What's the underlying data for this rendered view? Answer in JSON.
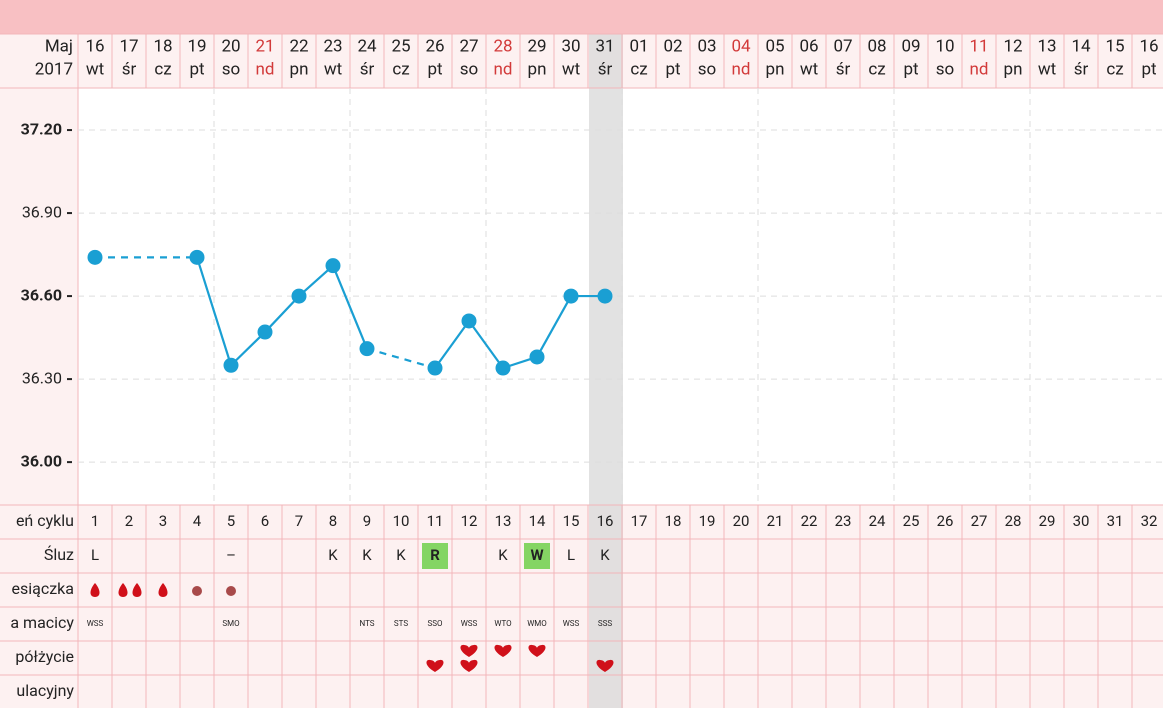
{
  "header": {
    "month": "Maj",
    "year": "2017"
  },
  "chart_data": {
    "type": "line",
    "x": [
      "16",
      "17",
      "18",
      "19",
      "20",
      "21",
      "22",
      "23",
      "24",
      "25",
      "26",
      "27",
      "28",
      "29",
      "30",
      "31",
      "01",
      "02",
      "03",
      "04",
      "05",
      "06",
      "07",
      "08",
      "09",
      "10",
      "11",
      "12",
      "13",
      "14",
      "15",
      "16"
    ],
    "weekdays": [
      "wt",
      "śr",
      "cz",
      "pt",
      "so",
      "nd",
      "pn",
      "wt",
      "śr",
      "cz",
      "pt",
      "so",
      "nd",
      "pn",
      "wt",
      "śr",
      "cz",
      "pt",
      "so",
      "nd",
      "pn",
      "wt",
      "śr",
      "cz",
      "pt",
      "so",
      "nd",
      "pn",
      "wt",
      "śr",
      "cz",
      "pt"
    ],
    "series": [
      {
        "color": "#1a9fd3",
        "values": [
          36.74,
          null,
          null,
          36.74,
          36.35,
          36.47,
          36.6,
          36.71,
          36.41,
          null,
          36.34,
          36.51,
          36.34,
          36.38,
          36.6,
          36.6,
          null,
          null,
          null,
          null,
          null,
          null,
          null,
          null,
          null,
          null,
          null,
          null,
          null,
          null,
          null,
          null
        ]
      }
    ],
    "ylim": [
      35.845,
      37.352
    ],
    "yticks": [
      {
        "value": 37.2,
        "label": "37.20"
      },
      {
        "value": 36.9,
        "label": "36.90"
      },
      {
        "value": 36.6,
        "label": "36.60"
      },
      {
        "value": 36.3,
        "label": "36.30"
      },
      {
        "value": 36.0,
        "label": "36.00"
      }
    ],
    "grid": true
  },
  "table": {
    "rows": [
      {
        "label": "eń cyklu",
        "cells": [
          1,
          2,
          3,
          4,
          5,
          6,
          7,
          8,
          9,
          10,
          11,
          12,
          13,
          14,
          15,
          16,
          17,
          18,
          19,
          20,
          21,
          22,
          23,
          24,
          25,
          26,
          27,
          28,
          29,
          30,
          31,
          32
        ]
      },
      {
        "label": "Śluz",
        "cells": [
          "L",
          null,
          null,
          null,
          "–",
          null,
          null,
          "K",
          "K",
          "K",
          {
            "text": "R",
            "highlight": true
          },
          null,
          "K",
          {
            "text": "W",
            "highlight": true
          },
          "L",
          "K"
        ]
      },
      {
        "label": "esiączka"
      },
      {
        "label": "a macicy",
        "cells": [
          "WSS",
          null,
          null,
          null,
          "SMO",
          null,
          null,
          null,
          "NTS",
          "STS",
          "SSO",
          "WSS",
          "WTO",
          "WMO",
          "WSS",
          "SSS"
        ]
      },
      {
        "label": "półżycie"
      },
      {
        "label": "ulacyjny"
      }
    ]
  }
}
